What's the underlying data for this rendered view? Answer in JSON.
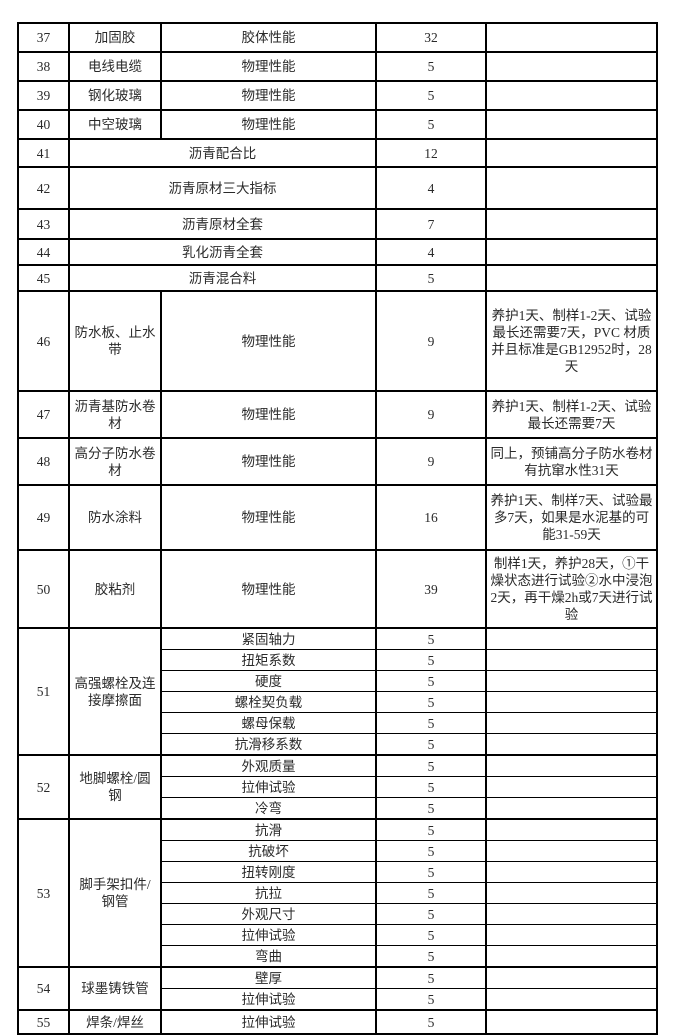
{
  "table": {
    "rows": [
      {
        "no": "37",
        "material": "加固胶",
        "item": "胶体性能",
        "days": "32",
        "remark": ""
      },
      {
        "no": "38",
        "material": "电线电缆",
        "item": "物理性能",
        "days": "5",
        "remark": ""
      },
      {
        "no": "39",
        "material": "钢化玻璃",
        "item": "物理性能",
        "days": "5",
        "remark": ""
      },
      {
        "no": "40",
        "material": "中空玻璃",
        "item": "物理性能",
        "days": "5",
        "remark": ""
      },
      {
        "no": "41",
        "merged": "沥青配合比",
        "days": "12",
        "remark": ""
      },
      {
        "no": "42",
        "merged": "沥青原材三大指标",
        "days": "4",
        "remark": ""
      },
      {
        "no": "43",
        "merged": "沥青原材全套",
        "days": "7",
        "remark": ""
      },
      {
        "no": "44",
        "merged": "乳化沥青全套",
        "days": "4",
        "remark": ""
      },
      {
        "no": "45",
        "merged": "沥青混合料",
        "days": "5",
        "remark": ""
      },
      {
        "no": "46",
        "material": "防水板、止水带",
        "item": "物理性能",
        "days": "9",
        "remark": "养护1天、制样1-2天、试验最长还需要7天，PVC 材质并且标准是GB12952时，28天"
      },
      {
        "no": "47",
        "material": "沥青基防水卷材",
        "item": "物理性能",
        "days": "9",
        "remark": "养护1天、制样1-2天、试验最长还需要7天"
      },
      {
        "no": "48",
        "material": "高分子防水卷材",
        "item": "物理性能",
        "days": "9",
        "remark": "同上，预铺高分子防水卷材有抗窜水性31天"
      },
      {
        "no": "49",
        "material": "防水涂料",
        "item": "物理性能",
        "days": "16",
        "remark": "养护1天、制样7天、试验最多7天，如果是水泥基的可能31-59天"
      },
      {
        "no": "50",
        "material": "胶粘剂",
        "item": "物理性能",
        "days": "39",
        "remark": "制样1天，养护28天，①干燥状态进行试验②水中浸泡2天，再干燥2h或7天进行试验"
      },
      {
        "no": "51",
        "material": "高强螺栓及连接摩擦面",
        "subitems": [
          {
            "item": "紧固轴力",
            "days": "5",
            "remark": ""
          },
          {
            "item": "扭矩系数",
            "days": "5",
            "remark": ""
          },
          {
            "item": "硬度",
            "days": "5",
            "remark": ""
          },
          {
            "item": "螺栓契负载",
            "days": "5",
            "remark": ""
          },
          {
            "item": "螺母保载",
            "days": "5",
            "remark": ""
          },
          {
            "item": "抗滑移系数",
            "days": "5",
            "remark": ""
          }
        ]
      },
      {
        "no": "52",
        "material": "地脚螺栓/圆钢",
        "subitems": [
          {
            "item": "外观质量",
            "days": "5",
            "remark": ""
          },
          {
            "item": "拉伸试验",
            "days": "5",
            "remark": ""
          },
          {
            "item": "冷弯",
            "days": "5",
            "remark": ""
          }
        ]
      },
      {
        "no": "53",
        "material": "脚手架扣件/钢管",
        "subitems": [
          {
            "item": "抗滑",
            "days": "5",
            "remark": ""
          },
          {
            "item": "抗破坏",
            "days": "5",
            "remark": ""
          },
          {
            "item": "扭转刚度",
            "days": "5",
            "remark": ""
          },
          {
            "item": "抗拉",
            "days": "5",
            "remark": ""
          },
          {
            "item": "外观尺寸",
            "days": "5",
            "remark": ""
          },
          {
            "item": "拉伸试验",
            "days": "5",
            "remark": ""
          },
          {
            "item": "弯曲",
            "days": "5",
            "remark": ""
          }
        ]
      },
      {
        "no": "54",
        "material": "球墨铸铁管",
        "subitems": [
          {
            "item": "壁厚",
            "days": "5",
            "remark": ""
          },
          {
            "item": "拉伸试验",
            "days": "5",
            "remark": ""
          }
        ]
      },
      {
        "no": "55",
        "material": "焊条/焊丝",
        "item": "拉伸试验",
        "days": "5",
        "remark": ""
      }
    ]
  }
}
